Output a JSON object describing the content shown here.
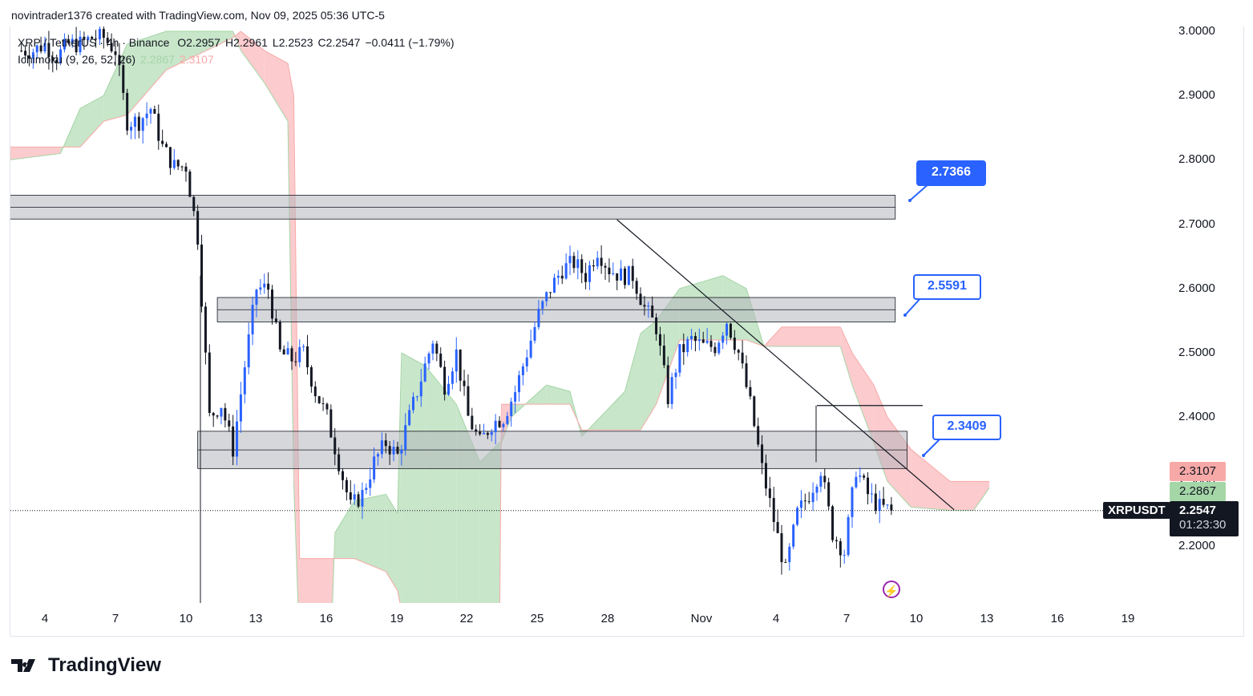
{
  "credit": "novintrader1376 created with TradingView.com, Nov 09, 2025 05:36 UTC-5",
  "legend": {
    "symbol": "XRP / TetherUS · 4h · Binance",
    "open": "O2.2957",
    "high": "H2.2961",
    "low": "L2.2523",
    "close": "C2.2547",
    "change": "−0.0411 (−1.79%)",
    "indicator": "Ichimoku (9, 26, 52, 26)",
    "ind_a": "2.2867",
    "ind_b": "2.3107"
  },
  "price_axis": [
    "3.0000",
    "2.9000",
    "2.8000",
    "2.7000",
    "2.6000",
    "2.5000",
    "2.4000",
    "2.3000",
    "2.2000"
  ],
  "time_axis": [
    "4",
    "7",
    "10",
    "13",
    "16",
    "19",
    "22",
    "25",
    "28",
    "Nov",
    "4",
    "7",
    "10",
    "13",
    "16",
    "19"
  ],
  "tags": {
    "span_b": "2.3107",
    "span_a": "2.2867",
    "symbol": "XRPUSDT",
    "last": "2.2547",
    "countdown": "01:23:30"
  },
  "callouts": [
    {
      "label": "2.7366",
      "style": "filled"
    },
    {
      "label": "2.5591",
      "style": "outline"
    },
    {
      "label": "2.3409",
      "style": "outline"
    }
  ],
  "brand": "TradingView",
  "colors": {
    "up": "#2962ff",
    "down": "#131722",
    "cloud_bull": "#c8e6c9",
    "cloud_bear": "#fccbcd",
    "zone": "#d1d4dc",
    "accent": "#2962ff"
  },
  "chart_data": {
    "type": "candlestick",
    "symbol": "XRPUSDT",
    "interval": "4h",
    "close_keypoints_start": "2025-10-03T00:00",
    "close_keypoints_step_hours": 12,
    "closes": [
      2.97,
      2.97,
      2.98,
      2.96,
      2.98,
      2.98,
      2.99,
      2.99,
      2.97,
      2.86,
      2.86,
      2.88,
      2.82,
      2.79,
      2.79,
      2.68,
      2.4,
      2.42,
      2.35,
      2.48,
      2.6,
      2.6,
      2.5,
      2.49,
      2.5,
      2.44,
      2.4,
      2.33,
      2.26,
      2.28,
      2.33,
      2.36,
      2.34,
      2.4,
      2.46,
      2.52,
      2.45,
      2.5,
      2.4,
      2.36,
      2.39,
      2.4,
      2.44,
      2.5,
      2.56,
      2.6,
      2.63,
      2.64,
      2.62,
      2.66,
      2.63,
      2.62,
      2.62,
      2.57,
      2.54,
      2.43,
      2.5,
      2.52,
      2.51,
      2.51,
      2.55,
      2.5,
      2.42,
      2.32,
      2.24,
      2.16,
      2.25,
      2.28,
      2.32,
      2.22,
      2.19,
      2.32,
      2.28,
      2.26,
      2.2547
    ],
    "ylim": [
      2.05,
      3.0
    ],
    "ichimoku_cloud": [
      [
        "2025-10-02T12:00",
        2.8,
        2.82
      ],
      [
        "2025-10-04T16:00",
        2.81,
        2.82
      ],
      [
        "2025-10-05T12:00",
        2.88,
        2.82
      ],
      [
        "2025-10-06T12:00",
        2.9,
        2.86
      ],
      [
        "2025-10-07T12:00",
        2.98,
        2.87
      ],
      [
        "2025-10-09T04:00",
        3.0,
        2.94
      ],
      [
        "2025-10-12T00:00",
        3.0,
        2.99
      ],
      [
        "2025-10-12T08:00",
        2.97,
        3.0
      ],
      [
        "2025-10-13T08:00",
        2.92,
        2.97
      ],
      [
        "2025-10-14T08:00",
        2.86,
        2.95
      ],
      [
        "2025-10-14T14:00",
        2.3,
        2.9
      ],
      [
        "2025-10-14T20:00",
        2.04,
        2.18
      ],
      [
        "2025-10-16T04:00",
        2.04,
        2.18
      ],
      [
        "2025-10-16T08:00",
        2.22,
        2.18
      ],
      [
        "2025-10-17T04:00",
        2.27,
        2.18
      ],
      [
        "2025-10-18T12:00",
        2.28,
        2.16
      ],
      [
        "2025-10-19T00:00",
        2.25,
        2.13
      ],
      [
        "2025-10-19T04:00",
        2.5,
        2.1
      ],
      [
        "2025-10-20T04:00",
        2.48,
        2.06
      ],
      [
        "2025-10-21T12:00",
        2.42,
        2.04
      ],
      [
        "2025-10-22T12:00",
        2.33,
        2.04
      ],
      [
        "2025-10-23T08:00",
        2.36,
        2.04
      ],
      [
        "2025-10-23T10:00",
        2.36,
        2.42
      ],
      [
        "2025-10-23T20:00",
        2.4,
        2.42
      ],
      [
        "2025-10-25T08:00",
        2.45,
        2.42
      ],
      [
        "2025-10-26T08:00",
        2.44,
        2.42
      ],
      [
        "2025-10-26T20:00",
        2.37,
        2.38
      ],
      [
        "2025-10-28T16:00",
        2.44,
        2.38
      ],
      [
        "2025-10-29T08:00",
        2.53,
        2.38
      ],
      [
        "2025-10-30T00:00",
        2.55,
        2.42
      ],
      [
        "2025-10-31T00:00",
        2.6,
        2.52
      ],
      [
        "2025-11-01T20:00",
        2.62,
        2.52
      ],
      [
        "2025-11-02T20:00",
        2.6,
        2.52
      ],
      [
        "2025-11-03T14:00",
        2.51,
        2.51
      ],
      [
        "2025-11-04T08:00",
        2.51,
        2.54
      ],
      [
        "2025-11-06T20:00",
        2.51,
        2.54
      ],
      [
        "2025-11-07T08:00",
        2.45,
        2.5
      ],
      [
        "2025-11-08T06:00",
        2.36,
        2.45
      ],
      [
        "2025-11-08T20:00",
        2.3,
        2.4
      ],
      [
        "2025-11-09T20:00",
        2.26,
        2.35
      ],
      [
        "2025-11-11T12:00",
        2.255,
        2.3
      ],
      [
        "2025-11-12T12:00",
        2.255,
        2.3
      ],
      [
        "2025-11-13T04:00",
        2.29,
        2.3
      ]
    ],
    "zones": [
      {
        "top": 2.745,
        "mid": 2.7265,
        "bottom": 2.708,
        "from": "2025-10-02T12:00",
        "to": "2025-11-09T04:00"
      },
      {
        "top": 2.586,
        "mid": 2.567,
        "bottom": 2.548,
        "from": "2025-10-11T08:00",
        "to": "2025-11-09T04:00"
      },
      {
        "top": 2.378,
        "mid": 2.349,
        "bottom": 2.32,
        "from": "2025-10-10T12:00",
        "to": "2025-11-09T16:00"
      }
    ],
    "trendline": [
      [
        "2025-10-28T08:00",
        2.707
      ],
      [
        "2025-11-11T16:00",
        2.256
      ]
    ],
    "hline": {
      "price": 2.418,
      "from": "2025-11-05T20:00",
      "to": "2025-11-10T08:00"
    },
    "last_price": 2.2547
  }
}
